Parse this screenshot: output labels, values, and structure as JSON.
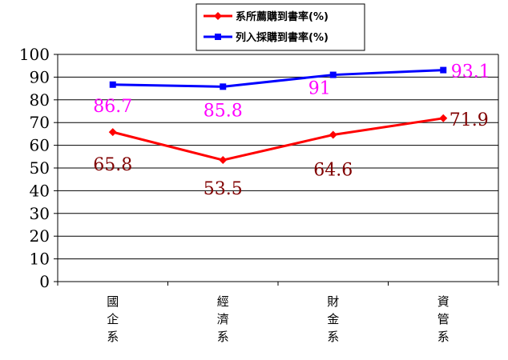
{
  "chart_data": {
    "type": "line",
    "categories": [
      "國\n企\n系",
      "經\n濟\n系",
      "財\n金\n系",
      "資\n管\n系"
    ],
    "ylim": [
      0,
      100
    ],
    "yticks": [
      0,
      10,
      20,
      30,
      40,
      50,
      60,
      70,
      80,
      90,
      100
    ],
    "grid": true,
    "legend_position": "top",
    "series": [
      {
        "name": "系所薦購到書率(%)",
        "values": [
          65.8,
          53.5,
          64.6,
          71.9
        ],
        "labels": [
          "65.8",
          "53.5",
          "64.6",
          "71.9"
        ],
        "color": "#ff0000",
        "label_color": "#800000",
        "marker": "diamond"
      },
      {
        "name": "列入採購到書率(%)",
        "values": [
          86.7,
          85.8,
          91,
          93.1
        ],
        "labels": [
          "86.7",
          "85.8",
          "91",
          "93.1"
        ],
        "color": "#0000ff",
        "label_color": "#ff00ff",
        "marker": "square"
      }
    ]
  }
}
